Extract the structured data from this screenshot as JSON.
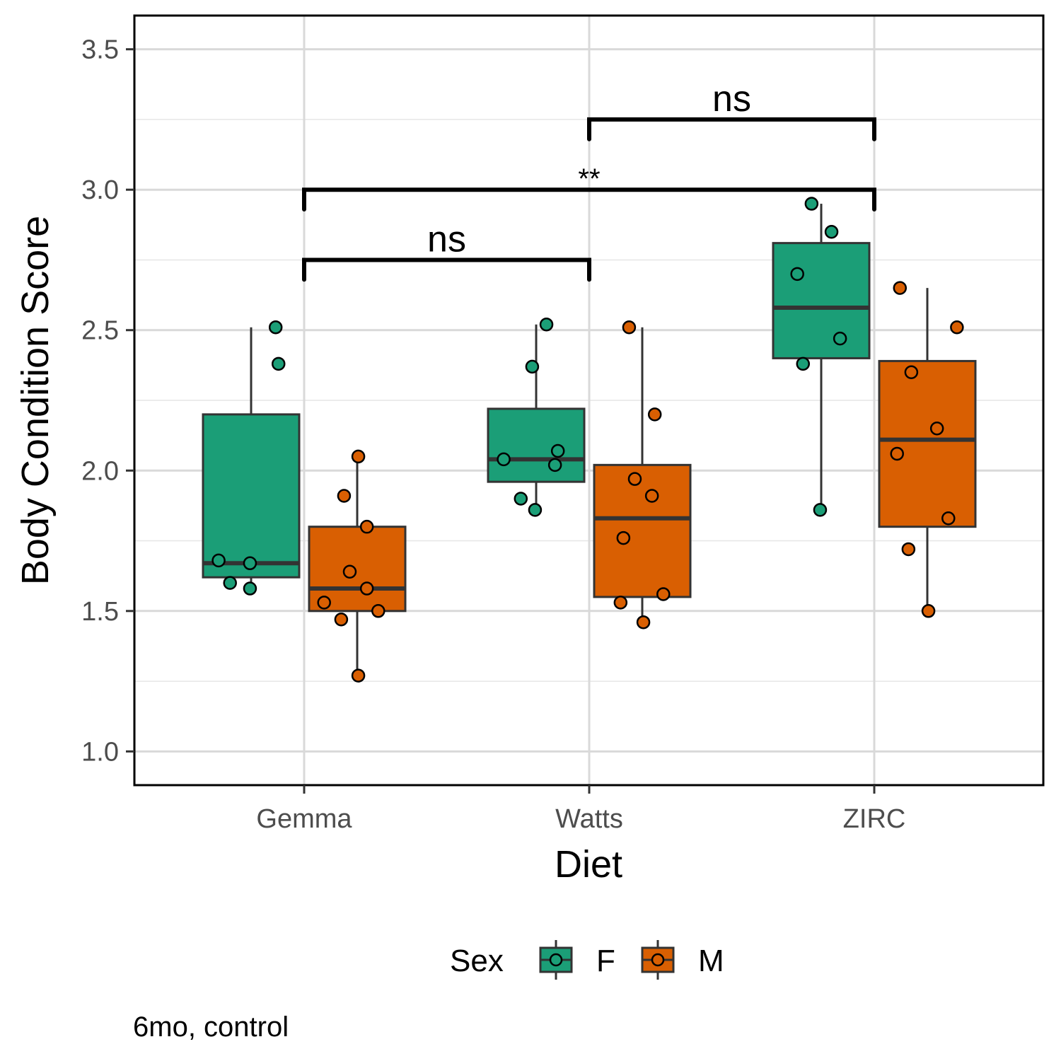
{
  "chart_data": {
    "type": "box",
    "xlabel": "Diet",
    "ylabel": "Body Condition Score",
    "caption": "6mo, control",
    "categories": [
      "Gemma",
      "Watts",
      "ZIRC"
    ],
    "ylim": [
      0.88,
      3.62
    ],
    "y_ticks": [
      "1.0",
      "1.5",
      "2.0",
      "2.5",
      "3.0",
      "3.5"
    ],
    "grid": true,
    "legend": {
      "title": "Sex",
      "position": "bottom",
      "entries": [
        "F",
        "M"
      ]
    },
    "series": [
      {
        "name": "F",
        "color": "#1b9e77",
        "boxes": [
          {
            "category": "Gemma",
            "min": 1.58,
            "q1": 1.62,
            "median": 1.67,
            "q3": 2.2,
            "max": 2.51
          },
          {
            "category": "Watts",
            "min": 1.86,
            "q1": 1.96,
            "median": 2.04,
            "q3": 2.22,
            "max": 2.52
          },
          {
            "category": "ZIRC",
            "min": 1.86,
            "q1": 2.4,
            "median": 2.58,
            "q3": 2.81,
            "max": 2.95
          }
        ],
        "points": [
          {
            "category": "Gemma",
            "dx": -0.1,
            "y": 2.51
          },
          {
            "category": "Gemma",
            "dx": -0.09,
            "y": 2.38
          },
          {
            "category": "Gemma",
            "dx": -0.3,
            "y": 1.68
          },
          {
            "category": "Gemma",
            "dx": -0.26,
            "y": 1.6
          },
          {
            "category": "Gemma",
            "dx": -0.19,
            "y": 1.67
          },
          {
            "category": "Gemma",
            "dx": -0.19,
            "y": 1.58
          },
          {
            "category": "Watts",
            "dx": -0.15,
            "y": 2.52
          },
          {
            "category": "Watts",
            "dx": -0.2,
            "y": 2.37
          },
          {
            "category": "Watts",
            "dx": -0.3,
            "y": 2.04
          },
          {
            "category": "Watts",
            "dx": -0.11,
            "y": 2.07
          },
          {
            "category": "Watts",
            "dx": -0.12,
            "y": 2.02
          },
          {
            "category": "Watts",
            "dx": -0.24,
            "y": 1.9
          },
          {
            "category": "Watts",
            "dx": -0.19,
            "y": 1.86
          },
          {
            "category": "ZIRC",
            "dx": -0.22,
            "y": 2.95
          },
          {
            "category": "ZIRC",
            "dx": -0.15,
            "y": 2.85
          },
          {
            "category": "ZIRC",
            "dx": -0.27,
            "y": 2.7
          },
          {
            "category": "ZIRC",
            "dx": -0.12,
            "y": 2.47
          },
          {
            "category": "ZIRC",
            "dx": -0.25,
            "y": 2.38
          },
          {
            "category": "ZIRC",
            "dx": -0.19,
            "y": 1.86
          }
        ]
      },
      {
        "name": "M",
        "color": "#d95f02",
        "boxes": [
          {
            "category": "Gemma",
            "min": 1.27,
            "q1": 1.5,
            "median": 1.58,
            "q3": 1.8,
            "max": 2.05
          },
          {
            "category": "Watts",
            "min": 1.46,
            "q1": 1.55,
            "median": 1.83,
            "q3": 2.02,
            "max": 2.51
          },
          {
            "category": "ZIRC",
            "min": 1.5,
            "q1": 1.8,
            "median": 2.11,
            "q3": 2.39,
            "max": 2.65
          }
        ],
        "points": [
          {
            "category": "Gemma",
            "dx": 0.19,
            "y": 2.05
          },
          {
            "category": "Gemma",
            "dx": 0.14,
            "y": 1.91
          },
          {
            "category": "Gemma",
            "dx": 0.22,
            "y": 1.8
          },
          {
            "category": "Gemma",
            "dx": 0.16,
            "y": 1.64
          },
          {
            "category": "Gemma",
            "dx": 0.22,
            "y": 1.58
          },
          {
            "category": "Gemma",
            "dx": 0.07,
            "y": 1.53
          },
          {
            "category": "Gemma",
            "dx": 0.26,
            "y": 1.5
          },
          {
            "category": "Gemma",
            "dx": 0.13,
            "y": 1.47
          },
          {
            "category": "Gemma",
            "dx": 0.19,
            "y": 1.27
          },
          {
            "category": "Watts",
            "dx": 0.14,
            "y": 2.51
          },
          {
            "category": "Watts",
            "dx": 0.23,
            "y": 2.2
          },
          {
            "category": "Watts",
            "dx": 0.16,
            "y": 1.97
          },
          {
            "category": "Watts",
            "dx": 0.22,
            "y": 1.91
          },
          {
            "category": "Watts",
            "dx": 0.12,
            "y": 1.76
          },
          {
            "category": "Watts",
            "dx": 0.26,
            "y": 1.56
          },
          {
            "category": "Watts",
            "dx": 0.11,
            "y": 1.53
          },
          {
            "category": "Watts",
            "dx": 0.19,
            "y": 1.46
          },
          {
            "category": "ZIRC",
            "dx": 0.09,
            "y": 2.65
          },
          {
            "category": "ZIRC",
            "dx": 0.29,
            "y": 2.51
          },
          {
            "category": "ZIRC",
            "dx": 0.13,
            "y": 2.35
          },
          {
            "category": "ZIRC",
            "dx": 0.22,
            "y": 2.15
          },
          {
            "category": "ZIRC",
            "dx": 0.08,
            "y": 2.06
          },
          {
            "category": "ZIRC",
            "dx": 0.26,
            "y": 1.83
          },
          {
            "category": "ZIRC",
            "dx": 0.12,
            "y": 1.72
          },
          {
            "category": "ZIRC",
            "dx": 0.19,
            "y": 1.5
          }
        ]
      }
    ],
    "comparisons": [
      {
        "from": "Gemma",
        "to": "Watts",
        "label": "ns",
        "y": 2.75,
        "drop": 0.07
      },
      {
        "from": "Gemma",
        "to": "ZIRC",
        "label": "**",
        "y": 3.0,
        "drop": 0.07
      },
      {
        "from": "Watts",
        "to": "ZIRC",
        "label": "ns",
        "y": 3.25,
        "drop": 0.07
      }
    ]
  }
}
